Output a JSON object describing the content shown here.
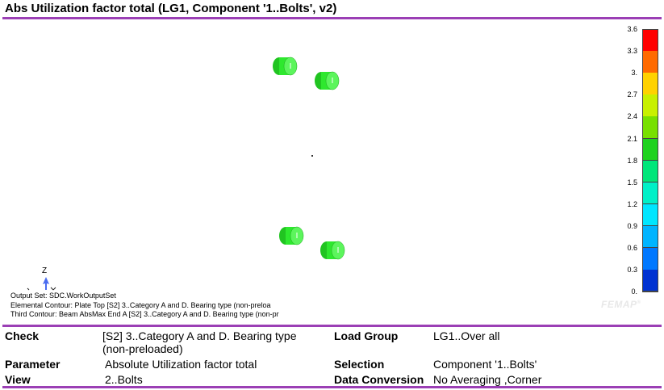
{
  "title": "Abs Utilization factor total (LG1, Component '1..Bolts', v2)",
  "legend": {
    "ticks": [
      "3.6",
      "3.3",
      "3.",
      "2.7",
      "2.4",
      "2.1",
      "1.8",
      "1.5",
      "1.2",
      "0.9",
      "0.6",
      "0.3",
      "0."
    ],
    "colors": [
      "#ff0000",
      "#ff6a00",
      "#ffd200",
      "#c8f000",
      "#78e000",
      "#1ed21e",
      "#00e67a",
      "#00f0c8",
      "#00e6ff",
      "#00b4ff",
      "#0078ff",
      "#0032d2",
      "#00008c"
    ]
  },
  "bolt_color": "#2ee82e",
  "axis": {
    "z_label": "Z"
  },
  "output": {
    "line1": "Output Set: SDC.WorkOutputSet",
    "line2": "Elemental Contour: Plate Top [S2] 3..Category A and D. Bearing type (non-preloa",
    "line3": "Third Contour: Beam AbsMax End A [S2] 3..Category A and D. Bearing type (non-pr"
  },
  "watermark": "FEMAP",
  "info": {
    "check_label": "Check",
    "check_value": "[S2] 3..Category A and D. Bearing type (non-preloaded)",
    "load_group_label": "Load Group",
    "load_group_value": "LG1..Over all",
    "parameter_label": "Parameter",
    "parameter_value": "Absolute Utilization factor total",
    "selection_label": "Selection",
    "selection_value": "Component '1..Bolts'",
    "view_label": "View",
    "view_value": "2..Bolts",
    "data_conversion_label": "Data Conversion",
    "data_conversion_value": "No Averaging ,Corner"
  }
}
